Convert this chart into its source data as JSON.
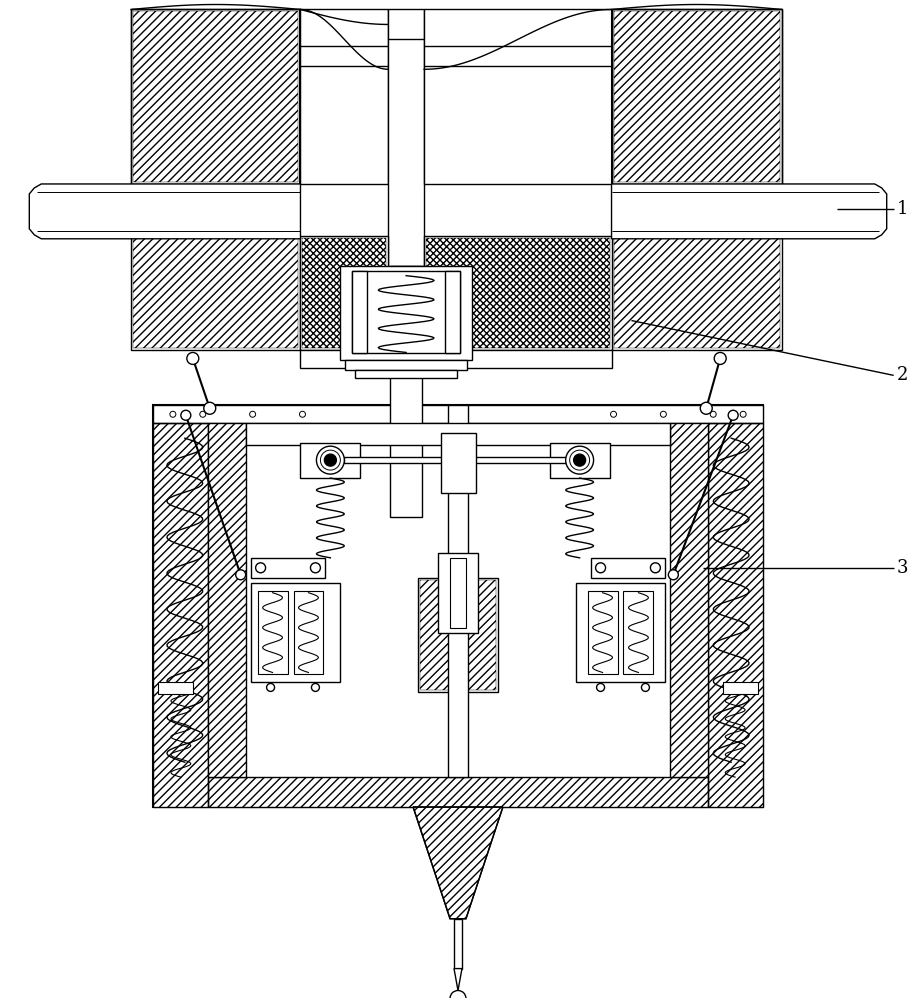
{
  "title": "",
  "background_color": "#ffffff",
  "line_color": "#000000",
  "label_color": "#000000",
  "figsize": [
    9.16,
    10.0
  ],
  "dpi": 100
}
